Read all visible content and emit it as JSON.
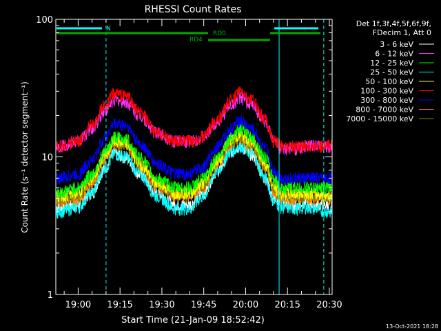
{
  "chart_data": {
    "type": "line",
    "title": "RHESSI Count Rates",
    "xlabel": "Start Time (21-Jan-09 18:52:42)",
    "ylabel": "Count Rate (s⁻¹ detector segment⁻¹)",
    "yscale": "log",
    "ylim": [
      1,
      100
    ],
    "xlim": [
      "18:52",
      "20:31"
    ],
    "x_ticks": [
      "19:00",
      "19:15",
      "19:30",
      "19:45",
      "20:00",
      "20:15",
      "20:30"
    ],
    "y_ticks": [
      "1",
      "10",
      "100"
    ],
    "legend_header": [
      "Det 1f,3f,4f,5f,6f,9f,",
      "FDecim 1, Att 0"
    ],
    "legend_position": "right",
    "timestamp": "13-Oct-2021 18:28",
    "x": [
      "18:53",
      "19:00",
      "19:05",
      "19:10",
      "19:13",
      "19:17",
      "19:22",
      "19:28",
      "19:35",
      "19:40",
      "19:45",
      "19:50",
      "19:55",
      "19:58",
      "20:02",
      "20:07",
      "20:10",
      "20:13",
      "20:18",
      "20:22",
      "20:25",
      "20:29"
    ],
    "series": [
      {
        "name": "3 - 6 keV",
        "color": "#ffffff",
        "values": [
          4.3,
          4.5,
          5.5,
          8.5,
          10.5,
          10,
          7.5,
          5.5,
          4.5,
          4.5,
          5.5,
          8,
          11,
          12,
          10.5,
          7,
          5,
          4.6,
          4.5,
          4.7,
          4.5,
          4.5
        ]
      },
      {
        "name": "6 - 12 keV",
        "color": "#ff33ff",
        "values": [
          12,
          13,
          16,
          22,
          26,
          25,
          20,
          15,
          13,
          13,
          14,
          18,
          24,
          27,
          24,
          18,
          13,
          11.5,
          11.5,
          12,
          12,
          12
        ]
      },
      {
        "name": "12 - 25 keV",
        "color": "#00ff00",
        "values": [
          5.5,
          6,
          7.5,
          11,
          14,
          13.5,
          10,
          7,
          6,
          6,
          7,
          10,
          14,
          16,
          14,
          10,
          7,
          6,
          6,
          6,
          6,
          6
        ]
      },
      {
        "name": "25 - 50 keV",
        "color": "#00ffff",
        "values": [
          4,
          4.3,
          5.5,
          8.5,
          10.5,
          10,
          7.5,
          5.2,
          4.2,
          4.2,
          5.2,
          8,
          11,
          12,
          10.5,
          7,
          4.8,
          4.3,
          4.2,
          4.3,
          4.2,
          4
        ]
      },
      {
        "name": "50 - 100 keV",
        "color": "#ffff00",
        "values": [
          5.2,
          5.5,
          7,
          10.5,
          13,
          12.5,
          9,
          6.5,
          5.5,
          5.5,
          6.5,
          9.5,
          13.5,
          14.5,
          13,
          9,
          6,
          5.4,
          5.4,
          5.5,
          5.4,
          5.3
        ]
      },
      {
        "name": "100 - 300 keV",
        "color": "#ff0000",
        "values": [
          12,
          13,
          17,
          24,
          29,
          28,
          21,
          15,
          13,
          13,
          14,
          19,
          26,
          30,
          26,
          19,
          13,
          12,
          12,
          12,
          12,
          12
        ]
      },
      {
        "name": "300 - 800 keV",
        "color": "#0000ff",
        "values": [
          7,
          7.5,
          9.5,
          14,
          17.5,
          17,
          12.5,
          9,
          7.5,
          7.5,
          8.5,
          12,
          16,
          18.5,
          16,
          11.5,
          8,
          7,
          7,
          7,
          7,
          7
        ]
      },
      {
        "name": "800 - 7000 keV",
        "color": "#ff8800",
        "values": [
          4.8,
          5,
          6.5,
          10,
          12.5,
          12,
          8.8,
          6.2,
          5.2,
          5.2,
          6,
          9,
          12.5,
          13.5,
          12,
          8.5,
          5.6,
          5,
          5,
          5,
          5,
          5
        ]
      },
      {
        "name": "7000 - 15000 keV",
        "color": "#808000",
        "values": [
          5,
          5.2,
          6.8,
          10.3,
          12.8,
          12.3,
          9,
          6.4,
          5.4,
          5.4,
          6.2,
          9.2,
          12.8,
          14,
          12.4,
          8.8,
          5.8,
          5.2,
          5.2,
          5.2,
          5.1,
          5.1
        ]
      }
    ],
    "annotations": {
      "night": {
        "label": "N",
        "color": "#00ffff"
      },
      "attenuator_bars": [
        {
          "label": "RD4",
          "color": "#00aa00"
        },
        {
          "label": "RD0",
          "color": "#00aa00"
        }
      ],
      "vertical_markers": [
        "19:10",
        "20:12",
        "20:28"
      ]
    }
  }
}
